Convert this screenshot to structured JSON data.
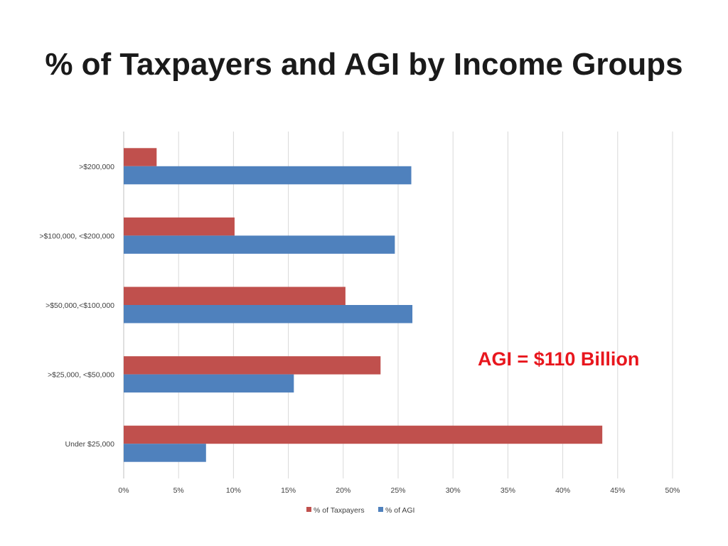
{
  "title": "% of Taxpayers and AGI by Income Groups",
  "annotation": "AGI = $110 Billion",
  "colors": {
    "taxpayers": "#c0504d",
    "agi": "#4f81bd",
    "grid": "#d9d9d9",
    "annotation": "#e8161d"
  },
  "chart_data": {
    "type": "bar",
    "orientation": "horizontal",
    "title": "% of Taxpayers and AGI by Income Groups",
    "categories": [
      ">$200,000",
      ">$100,000, <$200,000",
      ">$50,000,<$100,000",
      ">$25,000, <$50,000",
      "Under $25,000"
    ],
    "series": [
      {
        "name": "% of Taxpayers",
        "color": "#c0504d",
        "values": [
          3.0,
          10.1,
          20.2,
          23.4,
          43.6
        ]
      },
      {
        "name": "% of AGI",
        "color": "#4f81bd",
        "values": [
          26.2,
          24.7,
          26.3,
          15.5,
          7.5
        ]
      }
    ],
    "xlim": [
      0,
      50
    ],
    "xticks": [
      "0%",
      "5%",
      "10%",
      "15%",
      "20%",
      "25%",
      "30%",
      "35%",
      "40%",
      "45%",
      "50%"
    ],
    "xtick_values": [
      0,
      5,
      10,
      15,
      20,
      25,
      30,
      35,
      40,
      45,
      50
    ],
    "grid": true,
    "legend_position": "bottom"
  }
}
